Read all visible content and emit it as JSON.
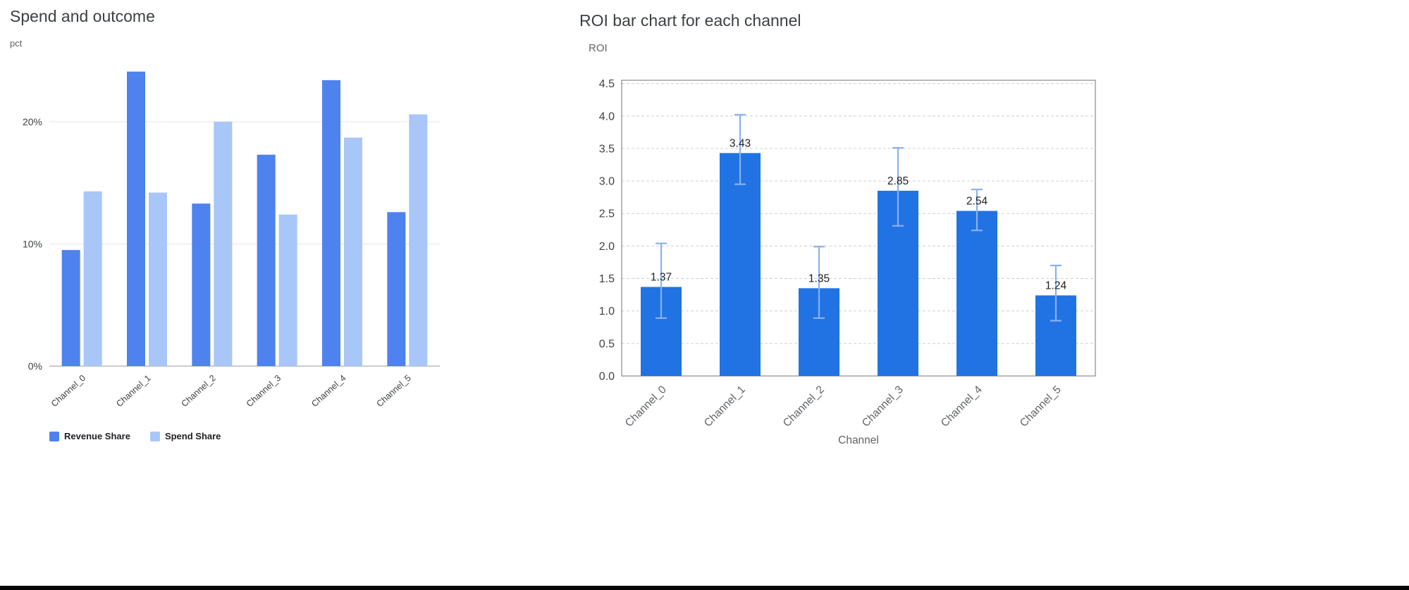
{
  "chart_data": [
    {
      "type": "bar",
      "title": "Spend and outcome",
      "ylabel": "pct",
      "xlabel": "",
      "categories": [
        "Channel_0",
        "Channel_1",
        "Channel_2",
        "Channel_3",
        "Channel_4",
        "Channel_5"
      ],
      "series": [
        {
          "name": "Revenue Share",
          "color": "#4e82ee",
          "values": [
            9.5,
            24.1,
            13.3,
            17.3,
            23.4,
            12.6
          ]
        },
        {
          "name": "Spend Share",
          "color": "#a8c6f8",
          "values": [
            14.3,
            14.2,
            20.0,
            12.4,
            18.7,
            20.6
          ]
        }
      ],
      "y_ticks": [
        {
          "value": 0,
          "label": "0%"
        },
        {
          "value": 10,
          "label": "10%"
        },
        {
          "value": 20,
          "label": "20%"
        }
      ],
      "ylim": [
        0,
        24.6
      ],
      "grid": "solid-light",
      "legend_position": "bottom",
      "x_tick_rotation": -45
    },
    {
      "type": "bar",
      "title": "ROI bar chart for each channel",
      "ylabel": "ROI",
      "xlabel": "Channel",
      "categories": [
        "Channel_0",
        "Channel_1",
        "Channel_2",
        "Channel_3",
        "Channel_4",
        "Channel_5"
      ],
      "series": [
        {
          "name": "ROI",
          "color": "#2173e3",
          "values": [
            1.37,
            3.43,
            1.35,
            2.85,
            2.54,
            1.24
          ]
        }
      ],
      "value_labels": [
        "1.37",
        "3.43",
        "1.35",
        "2.85",
        "2.54",
        "1.24"
      ],
      "error_bars": {
        "color": "#8ab0f2",
        "lo": [
          0.89,
          2.95,
          0.89,
          2.31,
          2.24,
          0.85
        ],
        "hi": [
          2.04,
          4.02,
          1.99,
          3.51,
          2.87,
          1.7
        ]
      },
      "y_ticks": [
        {
          "value": 0,
          "label": "0.0"
        },
        {
          "value": 0.5,
          "label": "0.5"
        },
        {
          "value": 1,
          "label": "1.0"
        },
        {
          "value": 1.5,
          "label": "1.5"
        },
        {
          "value": 2,
          "label": "2.0"
        },
        {
          "value": 2.5,
          "label": "2.5"
        },
        {
          "value": 3,
          "label": "3.0"
        },
        {
          "value": 3.5,
          "label": "3.5"
        },
        {
          "value": 4,
          "label": "4.0"
        },
        {
          "value": 4.5,
          "label": "4.5"
        }
      ],
      "ylim": [
        0,
        4.55
      ],
      "grid": "dashed",
      "legend_position": "none",
      "x_tick_rotation": -45
    }
  ]
}
